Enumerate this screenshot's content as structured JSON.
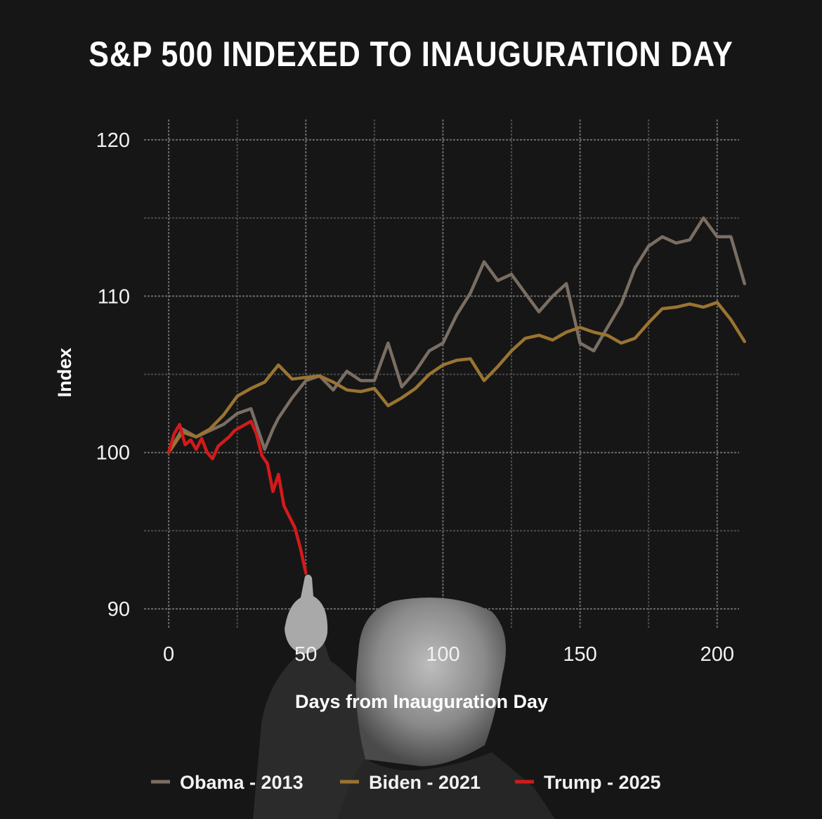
{
  "chart_data": {
    "type": "line",
    "title": "S&P 500 INDEXED TO INAUGURATION DAY",
    "xlabel": "Days from Inauguration Day",
    "ylabel": "Index",
    "xlim": [
      -9,
      208
    ],
    "ylim": [
      88.7,
      121.3
    ],
    "x_ticks": [
      0,
      50,
      100,
      150,
      200
    ],
    "y_ticks": [
      90,
      100,
      110,
      120
    ],
    "grid": true,
    "legend_position": "bottom",
    "series": [
      {
        "name": "Obama - 2013",
        "color": "#7a6e63",
        "x": [
          0,
          5,
          10,
          15,
          20,
          25,
          30,
          35,
          38,
          40,
          45,
          50,
          55,
          60,
          65,
          70,
          75,
          80,
          85,
          90,
          95,
          100,
          105,
          110,
          115,
          120,
          125,
          130,
          135,
          140,
          145,
          150,
          155,
          160,
          165,
          170,
          175,
          180,
          185,
          190,
          195,
          200,
          205,
          210
        ],
        "values": [
          100,
          101.5,
          101.0,
          101.4,
          101.8,
          102.5,
          102.8,
          100.2,
          101.5,
          102.2,
          103.5,
          104.6,
          104.9,
          104.0,
          105.2,
          104.6,
          104.6,
          107.0,
          104.2,
          105.2,
          106.5,
          107.0,
          108.8,
          110.2,
          112.2,
          111.0,
          111.4,
          110.2,
          109.0,
          110.0,
          110.8,
          107.0,
          106.5,
          108.0,
          109.5,
          111.8,
          113.2,
          113.8,
          113.4,
          113.6,
          115.0,
          113.8,
          113.8,
          110.8
        ]
      },
      {
        "name": "Biden - 2021",
        "color": "#9a7431",
        "x": [
          0,
          5,
          10,
          15,
          20,
          25,
          30,
          35,
          40,
          45,
          50,
          55,
          60,
          65,
          70,
          75,
          80,
          85,
          90,
          95,
          100,
          105,
          110,
          115,
          120,
          125,
          130,
          135,
          140,
          145,
          150,
          155,
          160,
          165,
          170,
          175,
          180,
          185,
          190,
          195,
          200,
          205,
          210
        ],
        "values": [
          100,
          101.3,
          101.0,
          101.5,
          102.4,
          103.6,
          104.1,
          104.5,
          105.6,
          104.7,
          104.8,
          104.9,
          104.5,
          104.0,
          103.9,
          104.1,
          103.0,
          103.5,
          104.1,
          105.0,
          105.6,
          105.9,
          106.0,
          104.6,
          105.5,
          106.5,
          107.3,
          107.5,
          107.2,
          107.7,
          108.0,
          107.7,
          107.5,
          107.0,
          107.3,
          108.3,
          109.2,
          109.3,
          109.5,
          109.3,
          109.6,
          108.5,
          107.1
        ]
      },
      {
        "name": "Trump - 2025",
        "color": "#d41a1a",
        "x": [
          0,
          2,
          4,
          6,
          8,
          10,
          12,
          14,
          16,
          18,
          20,
          22,
          24,
          26,
          28,
          30,
          32,
          34,
          36,
          38,
          40,
          42,
          44,
          46,
          48,
          50
        ],
        "values": [
          100,
          101.2,
          101.8,
          100.5,
          100.8,
          100.2,
          100.9,
          100.0,
          99.6,
          100.4,
          100.7,
          101.0,
          101.4,
          101.6,
          101.8,
          102.0,
          101.2,
          99.8,
          99.3,
          97.5,
          98.6,
          96.6,
          95.9,
          95.2,
          93.9,
          92.3
        ]
      }
    ]
  }
}
